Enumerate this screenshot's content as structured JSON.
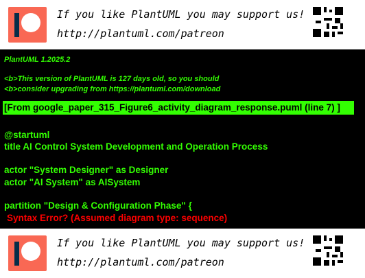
{
  "banner": {
    "line1": "If you like PlantUML you may support us!",
    "line2": "http://plantuml.com/patreon",
    "logo_icon": "patreon-logo-icon",
    "qr_icon": "qr-code-icon",
    "colors": {
      "logo": "#f96854",
      "logo_bar": "#052d49"
    }
  },
  "console": {
    "version": "PlantUML 1.2025.2",
    "warning_line1": "<b>This version of PlantUML is 127 days old, so you should",
    "warning_line2": "<b>consider upgrading from https://plantuml.com/download",
    "source_ref": "[From google_paper_315_Figure6_activity_diagram_response.puml (line 7) ]",
    "code_lines": [
      "@startuml",
      "title AI Control System Development and Operation Process",
      "",
      "actor \"System Designer\" as Designer",
      "actor \"AI System\" as AISystem",
      "",
      "partition \"Design & Configuration Phase\" {"
    ],
    "error": "Syntax Error? (Assumed diagram type: sequence)",
    "colors": {
      "background": "#000000",
      "text": "#33ff02",
      "error": "#ff0000"
    }
  }
}
